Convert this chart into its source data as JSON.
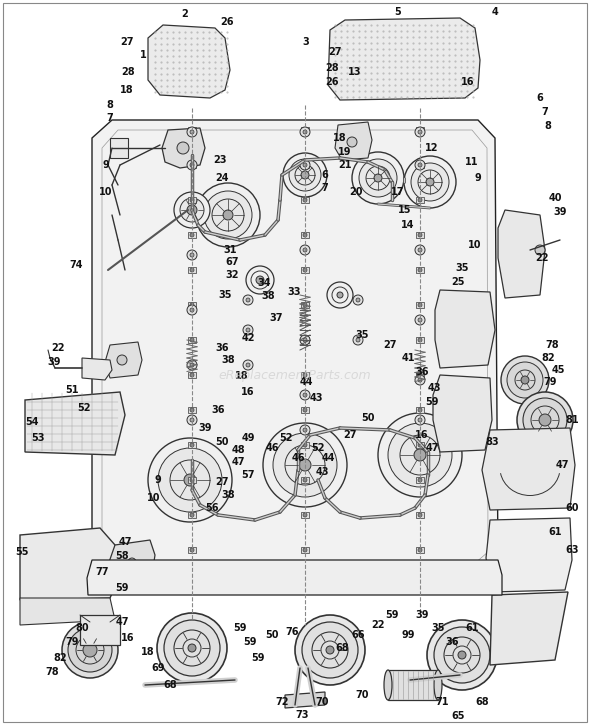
{
  "bg_color": "#ffffff",
  "border_color": "#bbbbbb",
  "dc": "#333333",
  "lg": "#999999",
  "mg": "#666666",
  "dk": "#222222",
  "watermark": "eReplacementParts.com",
  "wm_color": "#c8c8c8",
  "figsize": [
    5.9,
    7.25
  ],
  "dpi": 100,
  "label_fs": 6.0,
  "label_bold_fs": 7.0
}
